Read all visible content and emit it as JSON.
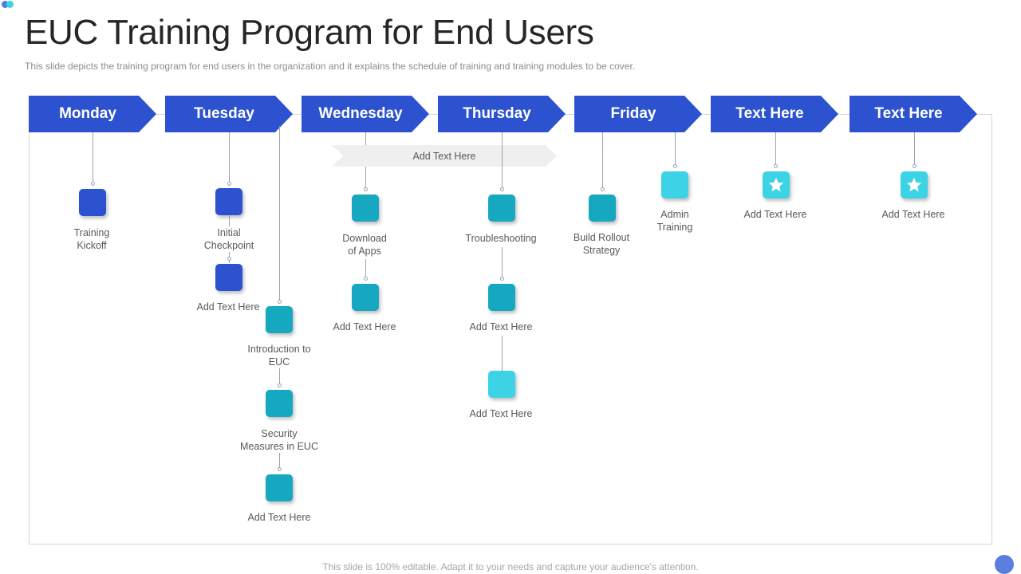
{
  "slide": {
    "title": "EUC Training Program for End Users",
    "subtitle": "This slide depicts the training program for end users in the organization and it explains the schedule of training and training modules to be cover.",
    "footer": "This slide is 100% editable. Adapt it to your needs and capture your audience's attention."
  },
  "days": [
    "Monday",
    "Tuesday",
    "Wednesday",
    "Thursday",
    "Friday",
    "Text Here",
    "Text Here"
  ],
  "banner": "Add Text Here",
  "items": {
    "monday_1": "Training\nKickoff",
    "tuesday_1": "Initial\nCheckpoint",
    "tuesday_2": "Add Text Here",
    "tuesday_3": "Introduction to\nEUC",
    "tuesday_4": "Security\nMeasures in EUC",
    "tuesday_5": "Add Text Here",
    "wednesday_1": "Download\nof Apps",
    "wednesday_2": "Add Text Here",
    "thursday_1": "Troubleshooting",
    "thursday_2": "Add Text Here",
    "thursday_3": "Add Text Here",
    "friday_1": "Build Rollout\nStrategy",
    "friday_2": "Admin\nTraining",
    "text6_1": "Add Text Here",
    "text7_1": "Add Text Here"
  },
  "colors": {
    "day_header": "#2d52cf",
    "box_blue": "#2d52cf",
    "box_teal": "#17a8c1",
    "box_cyan": "#3dd3e6"
  },
  "icons": [
    "star-icon"
  ]
}
